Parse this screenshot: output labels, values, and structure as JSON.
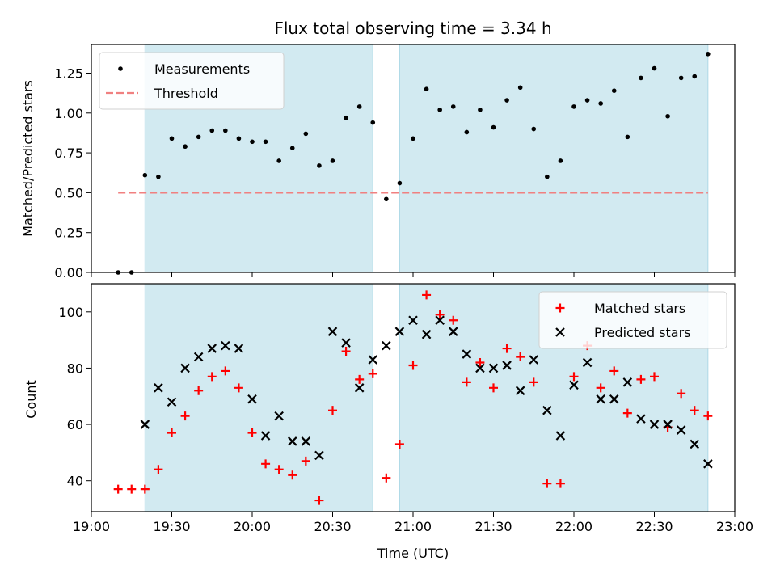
{
  "chart_data": [
    {
      "panel": "top",
      "type": "scatter",
      "title": "Flux total observing time = 3.34 h",
      "ylabel": "Matched/Predicted stars",
      "xlabel": "",
      "ylim": [
        0,
        1.43
      ],
      "xlim": [
        "19:00",
        "23:00"
      ],
      "yticks": [
        "0.00",
        "0.25",
        "0.50",
        "0.75",
        "1.00",
        "1.25"
      ],
      "xticks_labeled": false,
      "legend": {
        "placement": "top-left"
      },
      "shaded_intervals": [
        [
          "19:20",
          "20:45"
        ],
        [
          "20:55",
          "22:50"
        ]
      ],
      "colors": {
        "shade": "#add8e6",
        "threshold": "#f08080",
        "points": "#000000"
      },
      "series": [
        {
          "name": "Measurements",
          "marker": "dot",
          "x": [
            "19:10",
            "19:15",
            "19:20",
            "19:25",
            "19:30",
            "19:35",
            "19:40",
            "19:45",
            "19:50",
            "19:55",
            "20:00",
            "20:05",
            "20:10",
            "20:15",
            "20:20",
            "20:25",
            "20:30",
            "20:35",
            "20:40",
            "20:45",
            "20:50",
            "20:55",
            "21:00",
            "21:05",
            "21:10",
            "21:15",
            "21:20",
            "21:25",
            "21:30",
            "21:35",
            "21:40",
            "21:45",
            "21:50",
            "21:55",
            "22:00",
            "22:05",
            "22:10",
            "22:15",
            "22:20",
            "22:25",
            "22:30",
            "22:35",
            "22:40",
            "22:45",
            "22:50"
          ],
          "y": [
            0.0,
            0.0,
            0.61,
            0.6,
            0.84,
            0.79,
            0.85,
            0.89,
            0.89,
            0.84,
            0.82,
            0.82,
            0.7,
            0.78,
            0.87,
            0.67,
            0.7,
            0.97,
            1.04,
            0.94,
            0.46,
            0.56,
            0.84,
            1.15,
            1.02,
            1.04,
            0.88,
            1.02,
            0.91,
            1.08,
            1.16,
            0.9,
            0.6,
            0.7,
            1.04,
            1.08,
            1.06,
            1.14,
            0.85,
            1.22,
            1.28,
            0.98,
            1.22,
            1.23,
            1.37
          ]
        },
        {
          "name": "Threshold",
          "style": "dashed",
          "x": [
            "19:10",
            "22:50"
          ],
          "y": [
            0.5,
            0.5
          ]
        }
      ]
    },
    {
      "panel": "bottom",
      "type": "scatter",
      "title": "",
      "ylabel": "Count",
      "xlabel": "Time (UTC)",
      "ylim": [
        29,
        110
      ],
      "xlim": [
        "19:00",
        "23:00"
      ],
      "yticks": [
        "40",
        "60",
        "80",
        "100"
      ],
      "xticks": [
        "19:00",
        "19:30",
        "20:00",
        "20:30",
        "21:00",
        "21:30",
        "22:00",
        "22:30",
        "23:00"
      ],
      "legend": {
        "placement": "top-right"
      },
      "shaded_intervals": [
        [
          "19:20",
          "20:45"
        ],
        [
          "20:55",
          "22:50"
        ]
      ],
      "colors": {
        "shade": "#add8e6",
        "matched": "#ff0000",
        "predicted": "#000000"
      },
      "series": [
        {
          "name": "Matched stars",
          "marker": "plus",
          "x": [
            "19:10",
            "19:15",
            "19:20",
            "19:25",
            "19:30",
            "19:35",
            "19:40",
            "19:45",
            "19:50",
            "19:55",
            "20:00",
            "20:05",
            "20:10",
            "20:15",
            "20:20",
            "20:25",
            "20:30",
            "20:35",
            "20:40",
            "20:45",
            "20:50",
            "20:55",
            "21:00",
            "21:05",
            "21:10",
            "21:15",
            "21:20",
            "21:25",
            "21:30",
            "21:35",
            "21:40",
            "21:45",
            "21:50",
            "21:55",
            "22:00",
            "22:05",
            "22:10",
            "22:15",
            "22:20",
            "22:25",
            "22:30",
            "22:35",
            "22:40",
            "22:45",
            "22:50"
          ],
          "y": [
            37,
            37,
            37,
            44,
            57,
            63,
            72,
            77,
            79,
            73,
            57,
            46,
            44,
            42,
            47,
            33,
            65,
            86,
            76,
            78,
            41,
            53,
            81,
            106,
            99,
            97,
            75,
            82,
            73,
            87,
            84,
            75,
            39,
            39,
            77,
            88,
            73,
            79,
            64,
            76,
            77,
            59,
            71,
            65,
            63
          ]
        },
        {
          "name": "Predicted stars",
          "marker": "x",
          "x": [
            "19:20",
            "19:25",
            "19:30",
            "19:35",
            "19:40",
            "19:45",
            "19:50",
            "19:55",
            "20:00",
            "20:05",
            "20:10",
            "20:15",
            "20:20",
            "20:25",
            "20:30",
            "20:35",
            "20:40",
            "20:45",
            "20:50",
            "20:55",
            "21:00",
            "21:05",
            "21:10",
            "21:15",
            "21:20",
            "21:25",
            "21:30",
            "21:35",
            "21:40",
            "21:45",
            "21:50",
            "21:55",
            "22:00",
            "22:05",
            "22:10",
            "22:15",
            "22:20",
            "22:25",
            "22:30",
            "22:35",
            "22:40",
            "22:45",
            "22:50"
          ],
          "y": [
            60,
            73,
            68,
            80,
            84,
            87,
            88,
            87,
            69,
            56,
            63,
            54,
            54,
            49,
            93,
            89,
            73,
            83,
            88,
            93,
            97,
            92,
            97,
            93,
            85,
            80,
            80,
            81,
            72,
            83,
            65,
            56,
            74,
            82,
            69,
            69,
            75,
            62,
            60,
            60,
            58,
            53,
            46
          ]
        }
      ]
    }
  ]
}
